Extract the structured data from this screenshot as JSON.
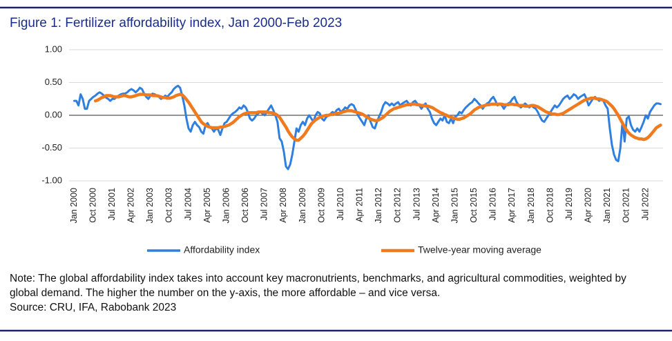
{
  "chart_data": {
    "type": "line",
    "title": "Figure 1: Fertilizer affordability index, Jan 2000-Feb 2023",
    "note": "Note: The global affordability index takes into account key macronutrients, benchmarks, and agricultural commodities, weighted by global demand. The higher the number on the y-axis, the more affordable – and vice versa.",
    "source": "Source: CRU, IFA, Rabobank 2023",
    "categories": [
      "Jan 2000",
      null,
      null,
      null,
      null,
      null,
      null,
      null,
      null,
      "Oct 2000",
      null,
      null,
      null,
      null,
      null,
      null,
      null,
      null,
      "Jul 2001",
      null,
      null,
      null,
      null,
      null,
      null,
      null,
      null,
      "Apr 2002",
      null,
      null,
      null,
      null,
      null,
      null,
      null,
      null,
      "Jan 2003",
      null,
      null,
      null,
      null,
      null,
      null,
      null,
      null,
      "Oct 2003",
      null,
      null,
      null,
      null,
      null,
      null,
      null,
      null,
      "Jul 2004",
      null,
      null,
      null,
      null,
      null,
      null,
      null,
      null,
      "Apr 2005",
      null,
      null,
      null,
      null,
      null,
      null,
      null,
      null,
      "Jan 2006",
      null,
      null,
      null,
      null,
      null,
      null,
      null,
      null,
      "Oct 2006",
      null,
      null,
      null,
      null,
      null,
      null,
      null,
      null,
      "Jul 2007",
      null,
      null,
      null,
      null,
      null,
      null,
      null,
      null,
      "Apr 2008",
      null,
      null,
      null,
      null,
      null,
      null,
      null,
      null,
      "Jan 2009",
      null,
      null,
      null,
      null,
      null,
      null,
      null,
      null,
      "Oct 2009",
      null,
      null,
      null,
      null,
      null,
      null,
      null,
      null,
      "Jul 2010",
      null,
      null,
      null,
      null,
      null,
      null,
      null,
      null,
      "Apr 2011",
      null,
      null,
      null,
      null,
      null,
      null,
      null,
      null,
      "Jan 2012",
      null,
      null,
      null,
      null,
      null,
      null,
      null,
      null,
      "Oct 2012",
      null,
      null,
      null,
      null,
      null,
      null,
      null,
      null,
      "Jul 2013",
      null,
      null,
      null,
      null,
      null,
      null,
      null,
      null,
      "Apr 2014",
      null,
      null,
      null,
      null,
      null,
      null,
      null,
      null,
      "Jan 2015",
      null,
      null,
      null,
      null,
      null,
      null,
      null,
      null,
      "Oct 2015",
      null,
      null,
      null,
      null,
      null,
      null,
      null,
      null,
      "Jul 2016",
      null,
      null,
      null,
      null,
      null,
      null,
      null,
      null,
      "Apr 2017",
      null,
      null,
      null,
      null,
      null,
      null,
      null,
      null,
      "Jan 2018",
      null,
      null,
      null,
      null,
      null,
      null,
      null,
      null,
      "Oct 2018",
      null,
      null,
      null,
      null,
      null,
      null,
      null,
      null,
      "Jul 2019",
      null,
      null,
      null,
      null,
      null,
      null,
      null,
      null,
      "Apr 2020",
      null,
      null,
      null,
      null,
      null,
      null,
      null,
      null,
      "Jan 2021",
      null,
      null,
      null,
      null,
      null,
      null,
      null,
      null,
      "Oct 2021",
      null,
      null,
      null,
      null,
      null,
      null,
      null,
      null,
      "Jul 2022",
      null,
      null,
      null,
      null,
      null,
      null,
      null
    ],
    "series": [
      {
        "name": "Affordability index",
        "color": "#2e7fe0",
        "values": [
          0.22,
          0.22,
          0.15,
          0.32,
          0.25,
          0.1,
          0.1,
          0.22,
          0.25,
          0.28,
          0.3,
          0.33,
          0.35,
          0.33,
          0.3,
          0.27,
          0.25,
          0.22,
          0.25,
          0.25,
          0.28,
          0.3,
          0.32,
          0.33,
          0.33,
          0.35,
          0.38,
          0.4,
          0.38,
          0.35,
          0.38,
          0.42,
          0.4,
          0.33,
          0.28,
          0.25,
          0.3,
          0.33,
          0.32,
          0.3,
          0.28,
          0.25,
          0.27,
          0.3,
          0.28,
          0.32,
          0.35,
          0.4,
          0.43,
          0.45,
          0.42,
          0.3,
          0.15,
          -0.05,
          -0.2,
          -0.25,
          -0.15,
          -0.1,
          -0.15,
          -0.18,
          -0.25,
          -0.28,
          -0.15,
          -0.12,
          -0.18,
          -0.2,
          -0.25,
          -0.2,
          -0.22,
          -0.3,
          -0.2,
          -0.12,
          -0.1,
          -0.05,
          0.0,
          0.03,
          0.05,
          0.08,
          0.12,
          0.1,
          0.15,
          0.12,
          0.05,
          -0.05,
          -0.08,
          -0.05,
          0.0,
          0.03,
          0.05,
          0.02,
          0.0,
          0.05,
          0.1,
          0.15,
          0.08,
          0.0,
          -0.1,
          -0.35,
          -0.4,
          -0.55,
          -0.78,
          -0.82,
          -0.75,
          -0.6,
          -0.4,
          -0.2,
          -0.25,
          -0.15,
          -0.1,
          -0.15,
          -0.05,
          0.0,
          -0.05,
          -0.1,
          0.0,
          0.05,
          0.03,
          -0.05,
          -0.08,
          -0.03,
          0.0,
          0.02,
          0.05,
          0.03,
          0.08,
          0.1,
          0.05,
          0.08,
          0.12,
          0.1,
          0.15,
          0.17,
          0.15,
          0.08,
          0.0,
          -0.05,
          -0.1,
          -0.15,
          -0.05,
          0.0,
          -0.1,
          -0.18,
          -0.2,
          -0.1,
          -0.02,
          0.05,
          0.15,
          0.2,
          0.18,
          0.15,
          0.18,
          0.15,
          0.18,
          0.2,
          0.15,
          0.18,
          0.2,
          0.22,
          0.18,
          0.15,
          0.2,
          0.22,
          0.18,
          0.15,
          0.1,
          0.15,
          0.18,
          0.1,
          0.05,
          -0.05,
          -0.12,
          -0.15,
          -0.1,
          -0.05,
          -0.08,
          0.0,
          -0.1,
          -0.12,
          -0.05,
          -0.12,
          -0.02,
          0.0,
          0.05,
          0.03,
          0.08,
          0.12,
          0.15,
          0.18,
          0.2,
          0.25,
          0.22,
          0.18,
          0.15,
          0.1,
          0.15,
          0.18,
          0.2,
          0.25,
          0.28,
          0.22,
          0.15,
          0.18,
          0.15,
          0.1,
          0.15,
          0.18,
          0.2,
          0.25,
          0.28,
          0.2,
          0.15,
          0.12,
          0.15,
          0.18,
          0.15,
          0.12,
          0.15,
          0.12,
          0.1,
          0.05,
          -0.02,
          -0.08,
          -0.1,
          -0.05,
          0.0,
          0.05,
          0.1,
          0.15,
          0.12,
          0.15,
          0.2,
          0.25,
          0.28,
          0.3,
          0.25,
          0.28,
          0.32,
          0.3,
          0.25,
          0.28,
          0.3,
          0.32,
          0.25,
          0.15,
          0.2,
          0.25,
          0.28,
          0.25,
          0.22,
          0.25,
          0.22,
          0.15,
          0.1,
          -0.2,
          -0.45,
          -0.6,
          -0.68,
          -0.7,
          -0.5,
          -0.1,
          -0.4,
          -0.05,
          -0.02,
          -0.15,
          -0.22,
          -0.25,
          -0.2,
          -0.25,
          -0.18,
          -0.1,
          0.0,
          -0.05,
          0.05,
          0.1,
          0.15,
          0.18,
          0.18,
          0.17
        ]
      },
      {
        "name": "Twelve-year moving average",
        "color": "#f07a1e",
        "values": [
          null,
          null,
          null,
          null,
          null,
          null,
          null,
          null,
          null,
          null,
          0.22,
          0.23,
          0.25,
          0.27,
          0.28,
          0.3,
          0.3,
          0.3,
          0.29,
          0.28,
          0.28,
          0.28,
          0.29,
          0.3,
          0.3,
          0.29,
          0.28,
          0.28,
          0.29,
          0.3,
          0.31,
          0.32,
          0.32,
          0.32,
          0.31,
          0.31,
          0.31,
          0.3,
          0.3,
          0.3,
          0.29,
          0.28,
          0.27,
          0.27,
          0.26,
          0.26,
          0.27,
          0.28,
          0.3,
          0.31,
          0.32,
          0.31,
          0.28,
          0.24,
          0.2,
          0.15,
          0.1,
          0.05,
          0.0,
          -0.05,
          -0.1,
          -0.13,
          -0.15,
          -0.17,
          -0.18,
          -0.19,
          -0.19,
          -0.19,
          -0.19,
          -0.18,
          -0.18,
          -0.17,
          -0.16,
          -0.15,
          -0.13,
          -0.11,
          -0.08,
          -0.05,
          -0.02,
          0.0,
          0.02,
          0.03,
          0.04,
          0.04,
          0.04,
          0.04,
          0.04,
          0.05,
          0.05,
          0.05,
          0.05,
          0.05,
          0.04,
          0.04,
          0.03,
          0.02,
          0.0,
          -0.03,
          -0.08,
          -0.13,
          -0.18,
          -0.24,
          -0.29,
          -0.33,
          -0.36,
          -0.38,
          -0.38,
          -0.35,
          -0.32,
          -0.28,
          -0.23,
          -0.18,
          -0.13,
          -0.1,
          -0.07,
          -0.05,
          -0.03,
          -0.02,
          -0.01,
          0.0,
          0.0,
          0.01,
          0.01,
          0.02,
          0.03,
          0.03,
          0.04,
          0.05,
          0.06,
          0.07,
          0.07,
          0.07,
          0.06,
          0.05,
          0.04,
          0.03,
          0.02,
          0.0,
          -0.02,
          -0.04,
          -0.06,
          -0.07,
          -0.08,
          -0.08,
          -0.07,
          -0.05,
          -0.03,
          0.0,
          0.03,
          0.06,
          0.08,
          0.1,
          0.11,
          0.12,
          0.13,
          0.14,
          0.15,
          0.16,
          0.16,
          0.17,
          0.17,
          0.17,
          0.16,
          0.16,
          0.15,
          0.15,
          0.14,
          0.14,
          0.13,
          0.12,
          0.1,
          0.08,
          0.06,
          0.04,
          0.03,
          0.01,
          0.0,
          -0.02,
          -0.03,
          -0.04,
          -0.05,
          -0.06,
          -0.06,
          -0.05,
          -0.04,
          -0.02,
          0.0,
          0.02,
          0.05,
          0.08,
          0.1,
          0.12,
          0.13,
          0.14,
          0.15,
          0.16,
          0.16,
          0.17,
          0.17,
          0.17,
          0.17,
          0.17,
          0.17,
          0.16,
          0.16,
          0.16,
          0.17,
          0.17,
          0.16,
          0.16,
          0.15,
          0.15,
          0.15,
          0.14,
          0.14,
          0.14,
          0.15,
          0.15,
          0.14,
          0.13,
          0.11,
          0.09,
          0.07,
          0.05,
          0.04,
          0.03,
          0.02,
          0.02,
          0.01,
          0.01,
          0.02,
          0.03,
          0.05,
          0.07,
          0.09,
          0.11,
          0.13,
          0.15,
          0.17,
          0.19,
          0.21,
          0.23,
          0.24,
          0.25,
          0.26,
          0.26,
          0.26,
          0.25,
          0.25,
          0.24,
          0.23,
          0.22,
          0.2,
          0.17,
          0.14,
          0.1,
          0.05,
          0.0,
          -0.06,
          -0.12,
          -0.18,
          -0.23,
          -0.27,
          -0.3,
          -0.32,
          -0.34,
          -0.35,
          -0.36,
          -0.36,
          -0.37,
          -0.36,
          -0.34,
          -0.31,
          -0.27,
          -0.23,
          -0.19,
          -0.17,
          -0.15
        ]
      }
    ],
    "ylim": [
      -1,
      1
    ],
    "yticks": [
      {
        "value": 1,
        "label": "1.00"
      },
      {
        "value": 0.5,
        "label": "0.50"
      },
      {
        "value": 0,
        "label": "0.00"
      },
      {
        "value": -0.5,
        "label": "-0.50"
      },
      {
        "value": -1,
        "label": "-1.00"
      }
    ],
    "grid": true,
    "legend": "bottom"
  }
}
